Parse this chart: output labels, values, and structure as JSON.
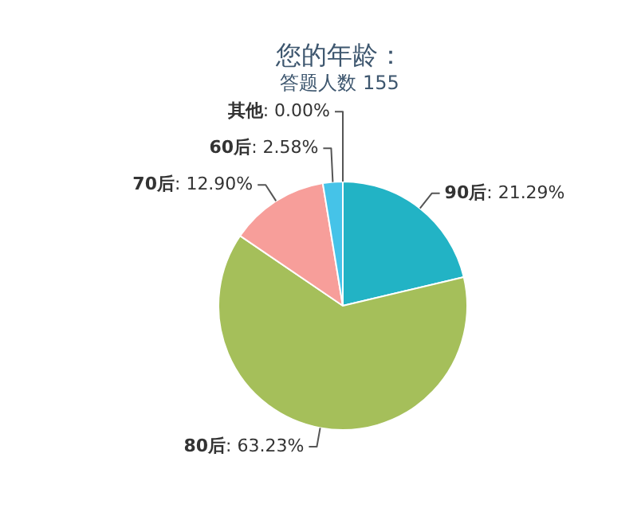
{
  "chart_data": {
    "type": "pie",
    "title": "您的年龄：",
    "subtitle": "答题人数 155",
    "categories": [
      "90后",
      "80后",
      "70后",
      "60后",
      "其他"
    ],
    "values": [
      21.29,
      63.23,
      12.9,
      2.58,
      0
    ],
    "value_labels": [
      ": 21.29%",
      ": 63.23%",
      ": 12.90%",
      ": 2.58%",
      ": 0.00%"
    ],
    "colors": [
      "#22b3c5",
      "#a5bf5a",
      "#f79e9a",
      "#45c3e8",
      "#7fa0d0"
    ],
    "legend": false
  }
}
